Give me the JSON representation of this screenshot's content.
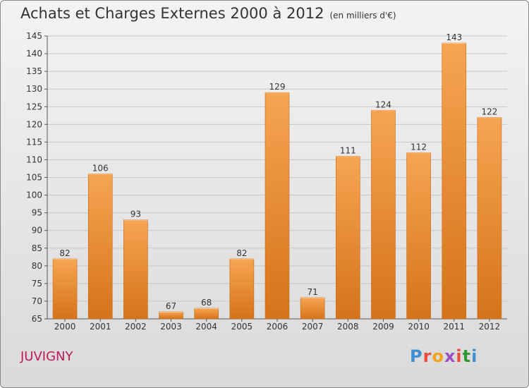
{
  "title": {
    "main": "Achats et Charges Externes 2000 à 2012",
    "unit": "(en milliers d'€)"
  },
  "commune": "JUVIGNY",
  "brand": {
    "text": "Proxiti",
    "letter_colors": [
      "#3f8fd2",
      "#e94b3c",
      "#f2a31b",
      "#9c4fc2",
      "#e94b3c",
      "#2e9a3a",
      "#3f8fd2"
    ]
  },
  "chart_data": {
    "type": "bar",
    "categories": [
      "2000",
      "2001",
      "2002",
      "2003",
      "2004",
      "2005",
      "2006",
      "2007",
      "2008",
      "2009",
      "2010",
      "2011",
      "2012"
    ],
    "values": [
      82,
      106,
      93,
      67,
      68,
      82,
      129,
      71,
      111,
      124,
      112,
      143,
      122
    ],
    "ylim": [
      65,
      145
    ],
    "yticks": [
      65,
      70,
      75,
      80,
      85,
      90,
      95,
      100,
      105,
      110,
      115,
      120,
      125,
      130,
      135,
      140,
      145
    ],
    "grid": true,
    "bar_color": "#f09a3e",
    "bar_color_dark": "#d77418",
    "data_labels": true
  }
}
